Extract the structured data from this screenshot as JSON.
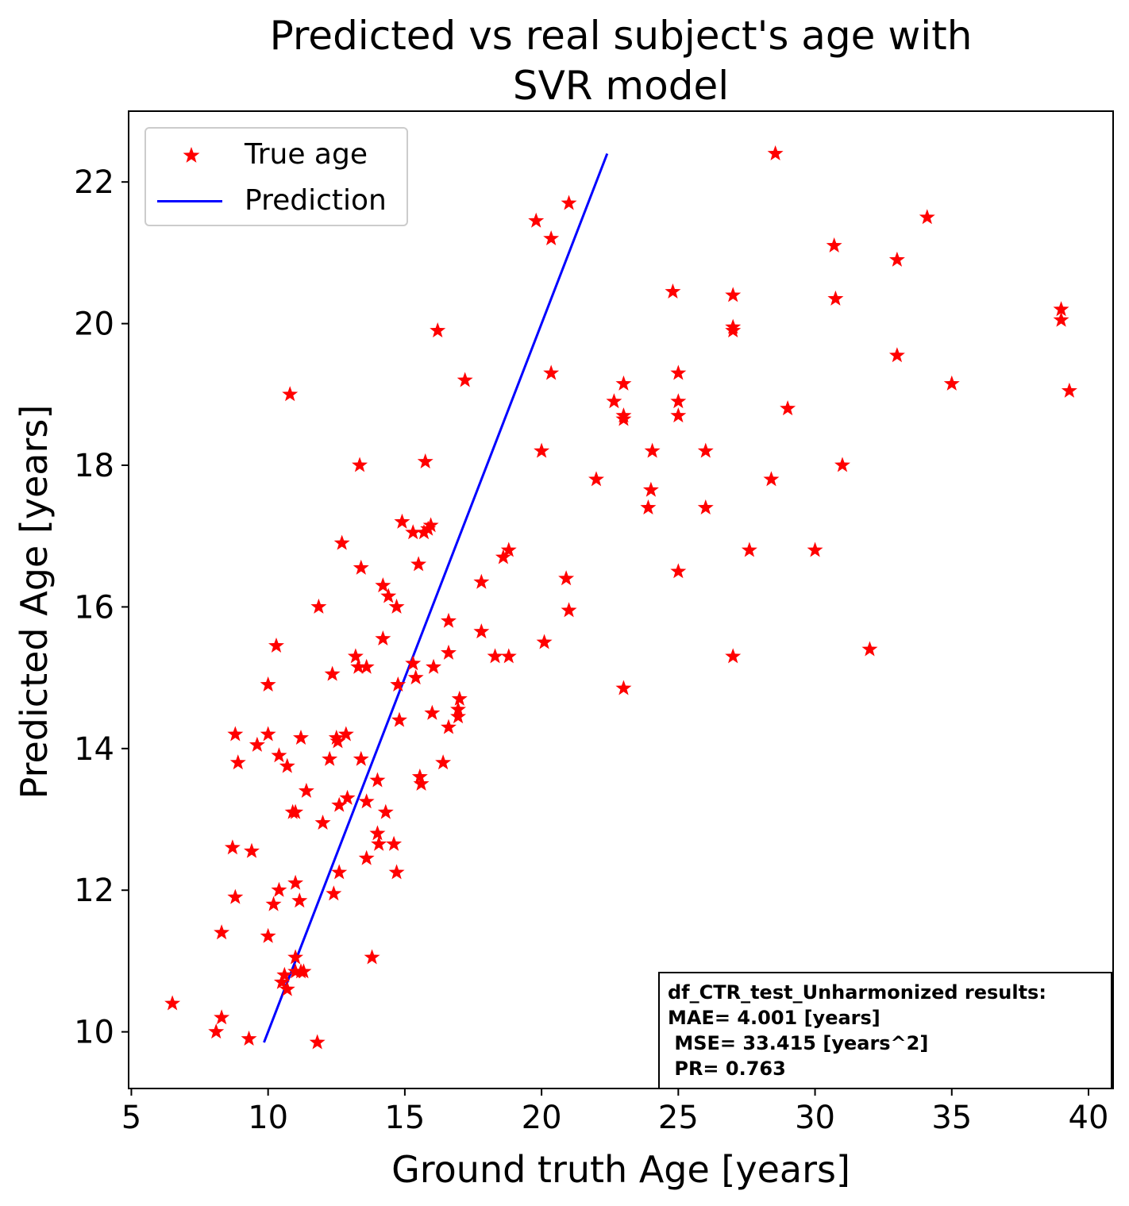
{
  "chart_data": {
    "type": "scatter",
    "title": "Predicted vs real subject's age with\nSVR model",
    "title_lines": [
      "Predicted vs real subject's age with",
      "SVR model"
    ],
    "xlabel": "Ground truth Age [years]",
    "ylabel": "Predicted Age [years]",
    "xlim": [
      4.9,
      40.9
    ],
    "ylim": [
      9.2,
      23.0
    ],
    "x_ticks": [
      5,
      10,
      15,
      20,
      25,
      30,
      35,
      40
    ],
    "y_ticks": [
      10,
      12,
      14,
      16,
      18,
      20,
      22
    ],
    "x_tick_labels": [
      "5",
      "10",
      "15",
      "20",
      "25",
      "30",
      "35",
      "40"
    ],
    "y_tick_labels": [
      "10",
      "12",
      "14",
      "16",
      "18",
      "20",
      "22"
    ],
    "grid": false,
    "legend_position": "top-left",
    "legend": [
      {
        "label": "True age",
        "marker": "star",
        "color": "#ff0000"
      },
      {
        "label": "Prediction",
        "marker": "line",
        "color": "#0000ff"
      }
    ],
    "series": [
      {
        "name": "True age",
        "type": "scatter",
        "color": "#ff0000",
        "marker": "star",
        "points": [
          [
            6.5,
            10.4
          ],
          [
            8.1,
            10.0
          ],
          [
            8.3,
            10.2
          ],
          [
            9.3,
            9.9
          ],
          [
            11.8,
            9.85
          ],
          [
            8.3,
            11.4
          ],
          [
            8.8,
            11.9
          ],
          [
            10.0,
            11.35
          ],
          [
            10.2,
            11.8
          ],
          [
            10.4,
            12.0
          ],
          [
            10.5,
            10.7
          ],
          [
            10.6,
            10.8
          ],
          [
            10.7,
            10.6
          ],
          [
            11.0,
            10.85
          ],
          [
            11.0,
            11.05
          ],
          [
            11.2,
            10.85
          ],
          [
            11.3,
            10.85
          ],
          [
            11.0,
            12.1
          ],
          [
            11.15,
            11.85
          ],
          [
            12.4,
            11.95
          ],
          [
            8.7,
            12.6
          ],
          [
            9.4,
            12.55
          ],
          [
            10.9,
            13.1
          ],
          [
            11.0,
            13.1
          ],
          [
            11.4,
            13.4
          ],
          [
            12.0,
            12.95
          ],
          [
            12.6,
            13.2
          ],
          [
            12.6,
            12.25
          ],
          [
            12.9,
            13.3
          ],
          [
            13.6,
            12.45
          ],
          [
            13.6,
            13.25
          ],
          [
            13.8,
            11.05
          ],
          [
            14.0,
            12.8
          ],
          [
            14.05,
            12.65
          ],
          [
            14.3,
            13.1
          ],
          [
            14.6,
            12.65
          ],
          [
            14.7,
            12.25
          ],
          [
            14.0,
            13.55
          ],
          [
            8.8,
            14.2
          ],
          [
            8.9,
            13.8
          ],
          [
            9.6,
            14.05
          ],
          [
            10.0,
            14.2
          ],
          [
            10.4,
            13.9
          ],
          [
            10.7,
            13.75
          ],
          [
            11.2,
            14.15
          ],
          [
            12.25,
            13.85
          ],
          [
            12.5,
            14.15
          ],
          [
            12.55,
            14.1
          ],
          [
            12.85,
            14.2
          ],
          [
            13.4,
            13.85
          ],
          [
            10.0,
            14.9
          ],
          [
            10.3,
            15.45
          ],
          [
            12.35,
            15.05
          ],
          [
            13.2,
            15.3
          ],
          [
            13.3,
            15.15
          ],
          [
            13.6,
            15.15
          ],
          [
            14.2,
            15.55
          ],
          [
            14.8,
            14.4
          ],
          [
            14.75,
            14.9
          ],
          [
            15.4,
            15.0
          ],
          [
            15.3,
            15.2
          ],
          [
            15.55,
            13.6
          ],
          [
            15.6,
            13.5
          ],
          [
            16.0,
            14.5
          ],
          [
            16.05,
            15.15
          ],
          [
            16.4,
            13.8
          ],
          [
            16.6,
            14.3
          ],
          [
            16.6,
            15.35
          ],
          [
            16.6,
            15.8
          ],
          [
            16.95,
            14.55
          ],
          [
            16.95,
            14.45
          ],
          [
            17.0,
            14.7
          ],
          [
            11.85,
            16.0
          ],
          [
            12.7,
            16.9
          ],
          [
            13.4,
            16.55
          ],
          [
            14.2,
            16.3
          ],
          [
            14.4,
            16.15
          ],
          [
            14.7,
            16.0
          ],
          [
            14.9,
            17.2
          ],
          [
            15.3,
            17.05
          ],
          [
            15.5,
            16.6
          ],
          [
            15.7,
            17.05
          ],
          [
            15.85,
            17.1
          ],
          [
            15.95,
            17.15
          ],
          [
            17.8,
            16.35
          ],
          [
            17.8,
            15.65
          ],
          [
            18.3,
            15.3
          ],
          [
            18.8,
            15.3
          ],
          [
            18.6,
            16.7
          ],
          [
            18.8,
            16.8
          ],
          [
            20.1,
            15.5
          ],
          [
            20.9,
            16.4
          ],
          [
            21.0,
            15.95
          ],
          [
            10.8,
            19.0
          ],
          [
            13.35,
            18.0
          ],
          [
            15.75,
            18.05
          ],
          [
            16.2,
            19.9
          ],
          [
            17.2,
            19.2
          ],
          [
            20.0,
            18.2
          ],
          [
            20.35,
            19.3
          ],
          [
            19.8,
            21.45
          ],
          [
            20.35,
            21.2
          ],
          [
            21.0,
            21.7
          ],
          [
            22.0,
            17.8
          ],
          [
            22.65,
            18.9
          ],
          [
            23.0,
            19.15
          ],
          [
            23.0,
            18.7
          ],
          [
            23.0,
            18.65
          ],
          [
            23.0,
            14.85
          ],
          [
            23.9,
            17.4
          ],
          [
            24.0,
            17.65
          ],
          [
            24.05,
            18.2
          ],
          [
            24.8,
            20.45
          ],
          [
            25.0,
            19.3
          ],
          [
            25.0,
            18.9
          ],
          [
            25.0,
            18.7
          ],
          [
            25.0,
            16.5
          ],
          [
            26.0,
            18.2
          ],
          [
            26.0,
            17.4
          ],
          [
            27.0,
            20.4
          ],
          [
            27.0,
            19.95
          ],
          [
            27.0,
            19.9
          ],
          [
            27.0,
            15.3
          ],
          [
            27.6,
            16.8
          ],
          [
            28.4,
            17.8
          ],
          [
            28.55,
            22.4
          ],
          [
            29.0,
            18.8
          ],
          [
            30.0,
            16.8
          ],
          [
            30.7,
            21.1
          ],
          [
            30.75,
            20.35
          ],
          [
            31.0,
            18.0
          ],
          [
            32.0,
            15.4
          ],
          [
            33.0,
            20.9
          ],
          [
            33.0,
            19.55
          ],
          [
            34.1,
            21.5
          ],
          [
            35.0,
            19.15
          ],
          [
            39.0,
            20.2
          ],
          [
            39.0,
            20.05
          ],
          [
            39.3,
            19.05
          ]
        ]
      },
      {
        "name": "Prediction",
        "type": "line",
        "color": "#0000ff",
        "points": [
          [
            9.85,
            9.85
          ],
          [
            22.4,
            22.4
          ]
        ]
      }
    ],
    "annotation": {
      "lines": [
        "df_CTR_test_Unharmonized results:",
        "MAE= 4.001 [years]",
        " MSE= 33.415 [years^2]",
        " PR= 0.763"
      ],
      "position": "bottom-right"
    }
  }
}
